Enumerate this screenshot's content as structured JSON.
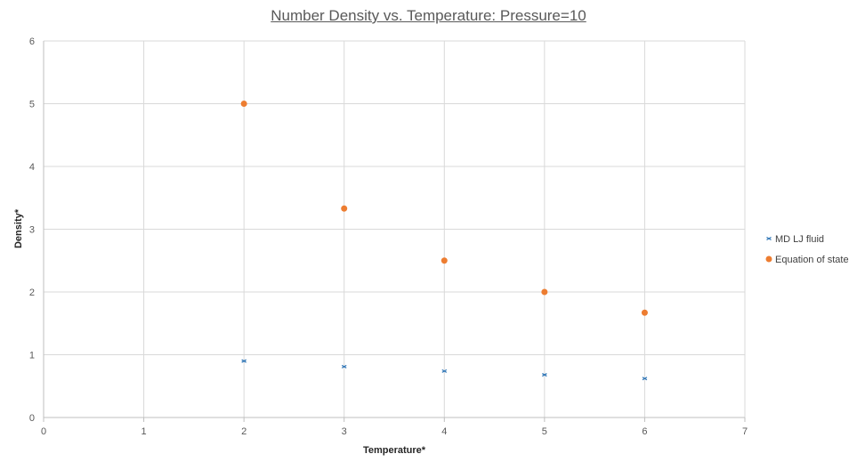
{
  "chart_data": {
    "type": "scatter",
    "title": "Number Density vs. Temperature: Pressure=10",
    "xlabel": "Temperature*",
    "ylabel": "Density*",
    "xlim": [
      0,
      7
    ],
    "ylim": [
      0,
      6
    ],
    "x_ticks": [
      "0",
      "1",
      "2",
      "3",
      "4",
      "5",
      "6",
      "7"
    ],
    "y_ticks": [
      "0",
      "1",
      "2",
      "3",
      "4",
      "5",
      "6"
    ],
    "grid": true,
    "legend_position": "right",
    "series": [
      {
        "name": "MD LJ fluid",
        "marker": "x",
        "color": "#2e75b6",
        "x": [
          2,
          3,
          4,
          5,
          6
        ],
        "y": [
          0.9,
          0.81,
          0.74,
          0.68,
          0.62
        ]
      },
      {
        "name": "Equation of state",
        "marker": "circle",
        "color": "#ed7d31",
        "x": [
          2,
          3,
          4,
          5,
          6
        ],
        "y": [
          5.0,
          3.33,
          2.5,
          2.0,
          1.67
        ]
      }
    ]
  }
}
